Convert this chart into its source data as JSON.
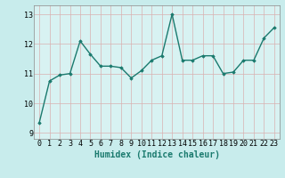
{
  "x": [
    0,
    1,
    2,
    3,
    4,
    5,
    6,
    7,
    8,
    9,
    10,
    11,
    12,
    13,
    14,
    15,
    16,
    17,
    18,
    19,
    20,
    21,
    22,
    23
  ],
  "y": [
    9.35,
    10.75,
    10.95,
    11.0,
    12.1,
    11.65,
    11.25,
    11.25,
    11.2,
    10.85,
    11.1,
    11.45,
    11.6,
    13.0,
    11.45,
    11.45,
    11.6,
    11.6,
    11.0,
    11.05,
    11.45,
    11.45,
    12.2,
    12.55
  ],
  "line_color": "#1a7a6e",
  "marker": "D",
  "marker_size": 1.8,
  "line_width": 1.0,
  "xlabel": "Humidex (Indice chaleur)",
  "xlabel_fontsize": 7,
  "tick_fontsize": 6,
  "ylim": [
    8.8,
    13.3
  ],
  "yticks": [
    9,
    10,
    11,
    12,
    13
  ],
  "background_color": "#c8ecec",
  "grid_color": "#d9b0b0",
  "grid_lw": 0.5,
  "plot_bg_color": "#d8f2f2",
  "spine_color": "#888888"
}
